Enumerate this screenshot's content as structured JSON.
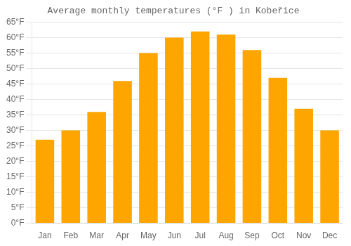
{
  "chart_data": {
    "type": "bar",
    "title": "Average monthly temperatures (°F ) in Kobeřice",
    "categories": [
      "Jan",
      "Feb",
      "Mar",
      "Apr",
      "May",
      "Jun",
      "Jul",
      "Aug",
      "Sep",
      "Oct",
      "Nov",
      "Dec"
    ],
    "values": [
      27,
      30,
      36,
      46,
      55,
      60,
      62,
      61,
      56,
      47,
      37,
      30
    ],
    "color": "#ffa500",
    "ylim": [
      0,
      65
    ],
    "yticks": [
      {
        "value": 0,
        "label": "0°F"
      },
      {
        "value": 5,
        "label": "5°F"
      },
      {
        "value": 10,
        "label": "10°F"
      },
      {
        "value": 15,
        "label": "15°F"
      },
      {
        "value": 20,
        "label": "20°F"
      },
      {
        "value": 25,
        "label": "25°F"
      },
      {
        "value": 30,
        "label": "30°F"
      },
      {
        "value": 35,
        "label": "35°F"
      },
      {
        "value": 40,
        "label": "40°F"
      },
      {
        "value": 45,
        "label": "45°F"
      },
      {
        "value": 50,
        "label": "50°F"
      },
      {
        "value": 55,
        "label": "55°F"
      },
      {
        "value": 60,
        "label": "60°F"
      },
      {
        "value": 65,
        "label": "65°F"
      }
    ],
    "grid": true
  }
}
